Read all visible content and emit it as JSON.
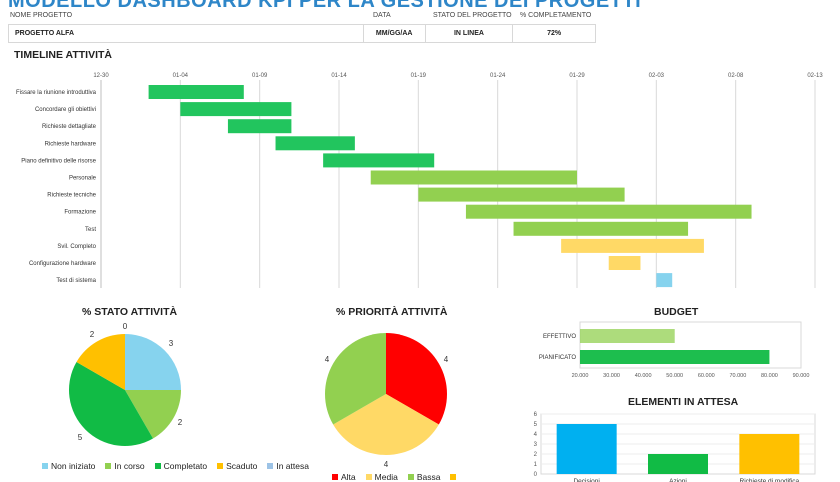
{
  "page": {
    "title": "MODELLO DASHBOARD KPI PER LA GESTIONE DEI PROGETTI"
  },
  "project_info": {
    "headers": {
      "name": "NOME PROGETTO",
      "date": "DATA",
      "status": "STATO DEL PROGETTO",
      "completion": "% COMPLETAMENTO"
    },
    "values": {
      "name": "PROGETTO ALFA",
      "date": "MM/GG/AA",
      "status": "IN LINEA",
      "completion": "72%"
    }
  },
  "colors": {
    "not_started": "#86d3ee",
    "in_progress": "#92d050",
    "completed": "#11bb45",
    "overdue": "#ffc000",
    "on_hold": "#9dc3e6",
    "high": "#ff0000",
    "medium": "#ffd966",
    "low": "#92d050",
    "blue_bar": "#00b0f0"
  },
  "chart_data": [
    {
      "type": "bar",
      "orientation": "horizontal-gantt",
      "title": "TIMELINE ATTIVITÀ",
      "x_ticks": [
        "12-30",
        "01-04",
        "01-09",
        "01-14",
        "01-19",
        "01-24",
        "01-29",
        "02-03",
        "02-08",
        "02-13"
      ],
      "x_range": [
        "2023-12-30",
        "2024-02-13"
      ],
      "grid": true,
      "tasks": [
        {
          "name": "Fissare la riunione introduttiva",
          "start": "2024-01-02",
          "end": "2024-01-08",
          "color": "#22c55e"
        },
        {
          "name": "Concordare gli obiettivi",
          "start": "2024-01-04",
          "end": "2024-01-11",
          "color": "#22c55e"
        },
        {
          "name": "Richieste dettagliate",
          "start": "2024-01-07",
          "end": "2024-01-11",
          "color": "#22c55e"
        },
        {
          "name": "Richieste hardware",
          "start": "2024-01-10",
          "end": "2024-01-15",
          "color": "#22c55e"
        },
        {
          "name": "Piano definitivo delle risorse",
          "start": "2024-01-13",
          "end": "2024-01-20",
          "color": "#22c55e"
        },
        {
          "name": "Personale",
          "start": "2024-01-16",
          "end": "2024-01-29",
          "color": "#92d050"
        },
        {
          "name": "Richieste tecniche",
          "start": "2024-01-19",
          "end": "2024-02-01",
          "color": "#92d050"
        },
        {
          "name": "Formazione",
          "start": "2024-01-22",
          "end": "2024-02-09",
          "color": "#92d050"
        },
        {
          "name": "Test",
          "start": "2024-01-25",
          "end": "2024-02-05",
          "color": "#92d050"
        },
        {
          "name": "Svil. Completo",
          "start": "2024-01-28",
          "end": "2024-02-06",
          "color": "#ffd966"
        },
        {
          "name": "Configurazione hardware",
          "start": "2024-01-31",
          "end": "2024-02-02",
          "color": "#ffd966"
        },
        {
          "name": "Test di sistema",
          "start": "2024-02-03",
          "end": "2024-02-04",
          "color": "#86d3ee"
        }
      ]
    },
    {
      "type": "pie",
      "title": "% STATO ATTIVITÀ",
      "legend_position": "bottom",
      "slices": [
        {
          "label": "Non iniziato",
          "value": 3,
          "color": "#86d3ee"
        },
        {
          "label": "In corso",
          "value": 2,
          "color": "#92d050"
        },
        {
          "label": "Completato",
          "value": 5,
          "color": "#11bb45"
        },
        {
          "label": "Scaduto",
          "value": 2,
          "color": "#ffc000"
        },
        {
          "label": "In attesa",
          "value": 0,
          "color": "#9dc3e6"
        }
      ]
    },
    {
      "type": "pie",
      "title": "% PRIORITÀ ATTIVITÀ",
      "legend_position": "bottom",
      "slices": [
        {
          "label": "Alta",
          "value": 4,
          "color": "#ff0000"
        },
        {
          "label": "Media",
          "value": 4,
          "color": "#ffd966"
        },
        {
          "label": "Bassa",
          "value": 4,
          "color": "#92d050"
        }
      ],
      "extra_legend_color": "#ffc000"
    },
    {
      "type": "bar",
      "orientation": "horizontal",
      "title": "BUDGET",
      "categories": [
        "EFFETTIVO",
        "PIANIFICATO"
      ],
      "values": [
        50000,
        80000
      ],
      "colors": [
        "#92d050",
        "#11bb45"
      ],
      "x_range": [
        20000,
        90000
      ],
      "x_ticks": [
        "20.000",
        "30.000",
        "40.000",
        "50.000",
        "60.000",
        "70.000",
        "80.000",
        "90.000"
      ]
    },
    {
      "type": "bar",
      "title": "ELEMENTI IN ATTESA",
      "categories": [
        "Decisioni",
        "Azioni",
        "Richieste di modifica"
      ],
      "values": [
        5,
        2,
        4
      ],
      "colors": [
        "#00b0f0",
        "#11bb45",
        "#ffc000"
      ],
      "y_range": [
        0,
        6
      ],
      "y_ticks": [
        "0",
        "1",
        "2",
        "3",
        "4",
        "5",
        "6"
      ]
    }
  ]
}
